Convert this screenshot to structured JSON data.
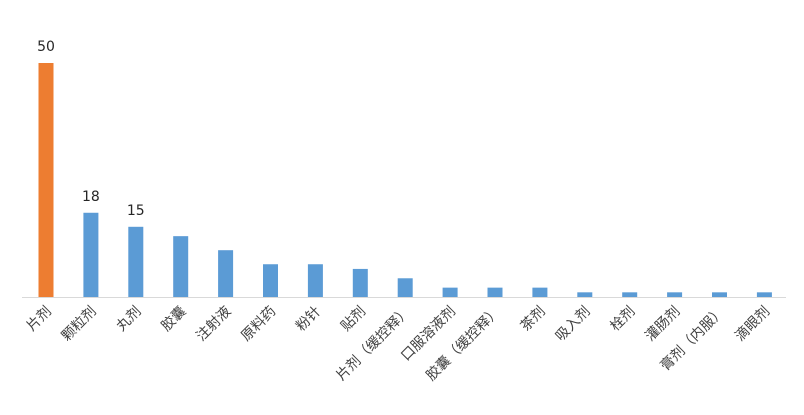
{
  "chart_data": {
    "type": "bar",
    "categories": [
      "片剂",
      "颗粒剂",
      "丸剂",
      "胶囊",
      "注射液",
      "原料药",
      "粉针",
      "贴剂",
      "片剂（缓控释）",
      "口服溶液剂",
      "胶囊（缓控释）",
      "茶剂",
      "吸入剂",
      "栓剂",
      "灌肠剂",
      "膏剂（内服）",
      "滴眼剂"
    ],
    "values": [
      50,
      18,
      15,
      13,
      10,
      7,
      7,
      6,
      4,
      2,
      2,
      2,
      1,
      1,
      1,
      1,
      1
    ],
    "value_labels": [
      "50",
      "18",
      "15",
      null,
      null,
      null,
      null,
      null,
      null,
      null,
      null,
      null,
      null,
      null,
      null,
      null,
      null
    ],
    "colors": [
      "#ed7d31",
      "#5b9bd5",
      "#5b9bd5",
      "#5b9bd5",
      "#5b9bd5",
      "#5b9bd5",
      "#5b9bd5",
      "#5b9bd5",
      "#5b9bd5",
      "#5b9bd5",
      "#5b9bd5",
      "#5b9bd5",
      "#5b9bd5",
      "#5b9bd5",
      "#5b9bd5",
      "#5b9bd5",
      "#5b9bd5"
    ]
  }
}
